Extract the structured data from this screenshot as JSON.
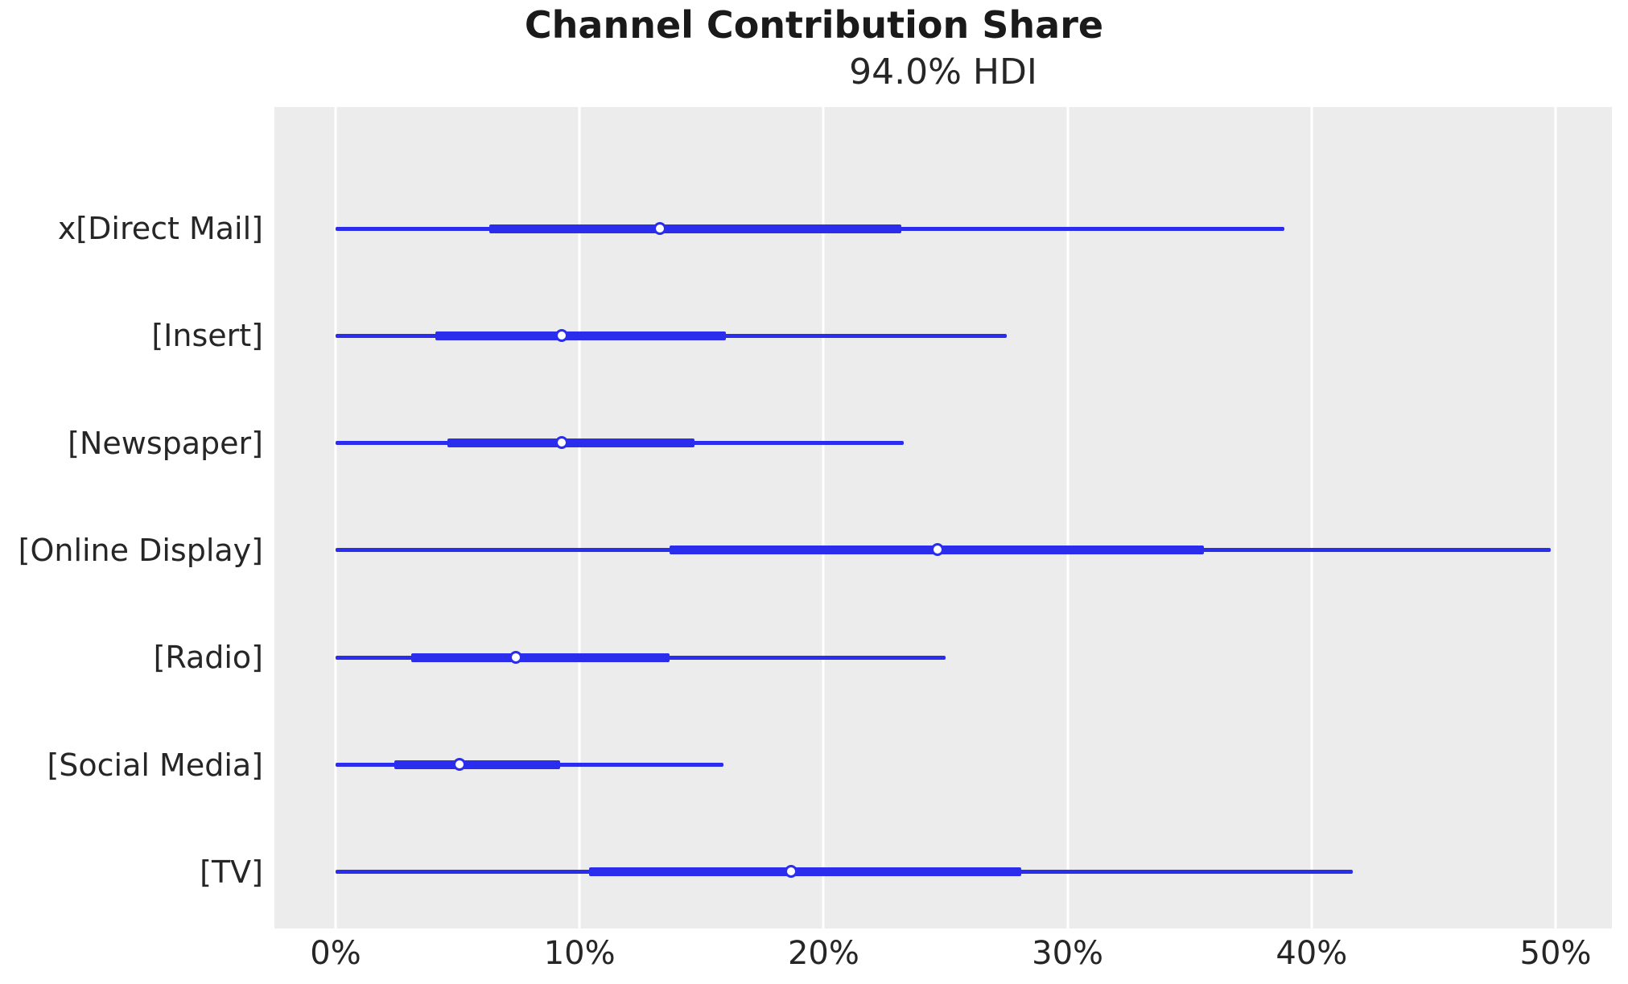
{
  "figure": {
    "title": "Channel Contribution Share",
    "subtitle": "94.0% HDI"
  },
  "colors": {
    "line": "#2a2eec",
    "median_dot_fill": "#ffffff",
    "plot_background": "#ececec",
    "gridline": "#ffffff",
    "text": "#262626"
  },
  "chart_data": {
    "type": "forest",
    "title": "Channel Contribution Share",
    "subtitle": "94.0% HDI",
    "hdi_probability": "94.0%",
    "orientation": "horizontal",
    "grid": true,
    "x_axis": {
      "range": [
        0,
        50
      ],
      "unit": "percent",
      "tick_values": [
        0,
        10,
        20,
        30,
        40,
        50
      ],
      "tick_labels": [
        "0%",
        "10%",
        "20%",
        "30%",
        "40%",
        "50%"
      ]
    },
    "series": [
      {
        "label": "x[Direct Mail]",
        "hdi_low": 0.0,
        "q1": 6.3,
        "median": 13.3,
        "q3": 23.2,
        "hdi_high": 38.9
      },
      {
        "label": "[Insert]",
        "hdi_low": 0.0,
        "q1": 4.1,
        "median": 9.3,
        "q3": 16.0,
        "hdi_high": 27.5
      },
      {
        "label": "[Newspaper]",
        "hdi_low": 0.0,
        "q1": 4.6,
        "median": 9.3,
        "q3": 14.7,
        "hdi_high": 23.3
      },
      {
        "label": "[Online Display]",
        "hdi_low": 0.0,
        "q1": 13.7,
        "median": 24.7,
        "q3": 35.6,
        "hdi_high": 49.8
      },
      {
        "label": "[Radio]",
        "hdi_low": 0.0,
        "q1": 3.1,
        "median": 7.4,
        "q3": 13.7,
        "hdi_high": 25.0
      },
      {
        "label": "[Social Media]",
        "hdi_low": 0.0,
        "q1": 2.4,
        "median": 5.1,
        "q3": 9.2,
        "hdi_high": 15.9
      },
      {
        "label": "[TV]",
        "hdi_low": 0.0,
        "q1": 10.4,
        "median": 18.7,
        "q3": 28.1,
        "hdi_high": 41.7
      }
    ]
  }
}
